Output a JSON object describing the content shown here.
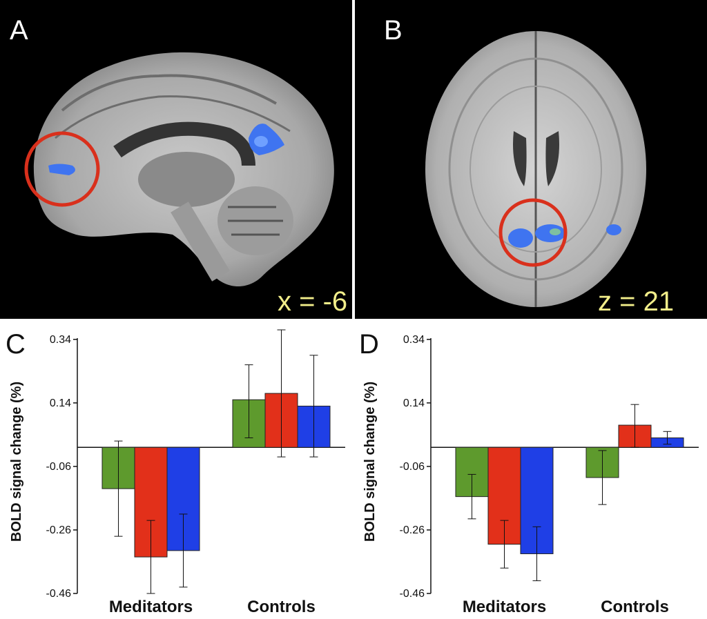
{
  "panels": {
    "a": {
      "letter": "A",
      "coordinate": "x = -6"
    },
    "b": {
      "letter": "B",
      "coordinate": "z = 21"
    }
  },
  "colors": {
    "green": "#5e9a2d",
    "red": "#e2301a",
    "blue": "#1f3fe6",
    "activation": "#3f74f0",
    "circle": "#d9301c",
    "coord_text": "#f2ee8a"
  },
  "chart_data": [
    {
      "panel_letter": "C",
      "type": "bar",
      "ylabel": "BOLD signal change (%)",
      "yticks": [
        "0.34",
        "0.14",
        "-0.06",
        "-0.26",
        "-0.46"
      ],
      "ylim": [
        -0.46,
        0.37
      ],
      "categories": [
        "Meditators",
        "Controls"
      ],
      "series": [
        {
          "color": "#5e9a2d",
          "values": [
            -0.13,
            0.15
          ],
          "err_low": [
            -0.28,
            0.03
          ],
          "err_high": [
            0.02,
            0.26
          ]
        },
        {
          "color": "#e2301a",
          "values": [
            -0.345,
            0.17
          ],
          "err_low": [
            -0.46,
            -0.03
          ],
          "err_high": [
            -0.23,
            0.37
          ]
        },
        {
          "color": "#1f3fe6",
          "values": [
            -0.325,
            0.13
          ],
          "err_low": [
            -0.44,
            -0.03
          ],
          "err_high": [
            -0.21,
            0.29
          ]
        }
      ]
    },
    {
      "panel_letter": "D",
      "type": "bar",
      "ylabel": "BOLD signal change (%)",
      "yticks": [
        "0.34",
        "0.14",
        "-0.06",
        "-0.26",
        "-0.46"
      ],
      "ylim": [
        -0.46,
        0.37
      ],
      "categories": [
        "Meditators",
        "Controls"
      ],
      "series": [
        {
          "color": "#5e9a2d",
          "values": [
            -0.155,
            -0.095
          ],
          "err_low": [
            -0.225,
            -0.18
          ],
          "err_high": [
            -0.085,
            -0.01
          ]
        },
        {
          "color": "#e2301a",
          "values": [
            -0.305,
            0.07
          ],
          "err_low": [
            -0.38,
            0.0
          ],
          "err_high": [
            -0.23,
            0.135
          ]
        },
        {
          "color": "#1f3fe6",
          "values": [
            -0.335,
            0.03
          ],
          "err_low": [
            -0.42,
            0.01
          ],
          "err_high": [
            -0.25,
            0.05
          ]
        }
      ]
    }
  ]
}
